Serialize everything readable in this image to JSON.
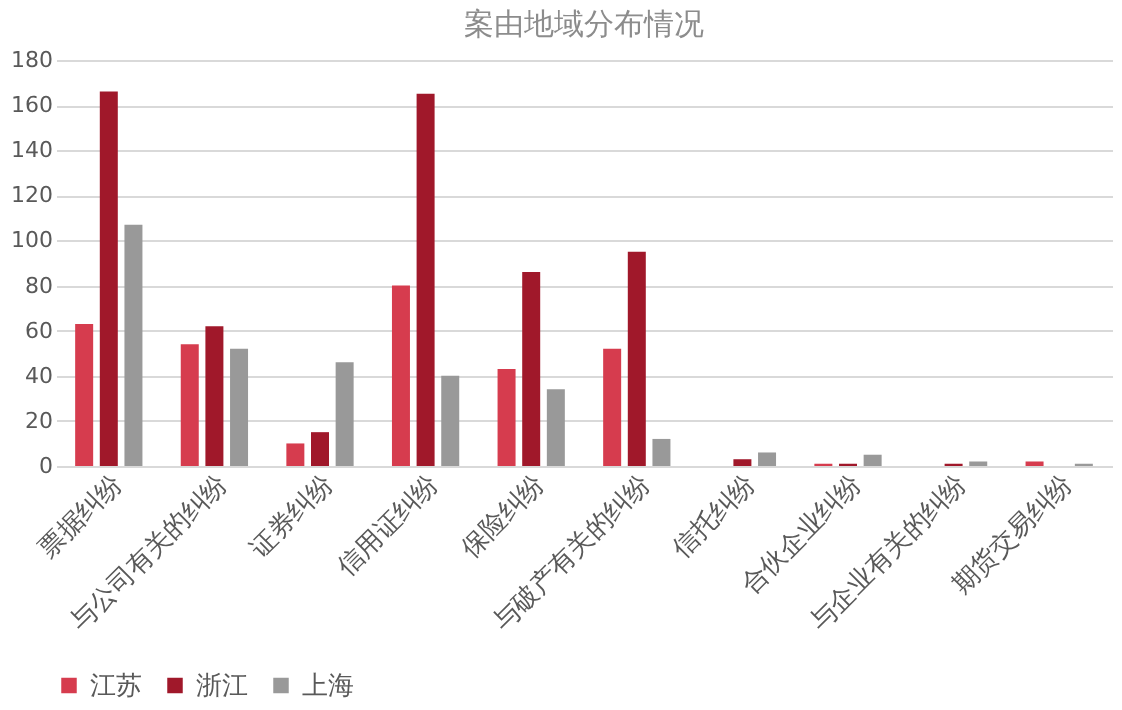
{
  "chart_data": {
    "type": "bar",
    "title": "案由地域分布情况",
    "categories": [
      "票据纠纷",
      "与公司有关的纠纷",
      "证券纠纷",
      "信用证纠纷",
      "保险纠纷",
      "与破产有关的纠纷",
      "信托纠纷",
      "合伙企业纠纷",
      "与企业有关的纠纷",
      "期货交易纠纷"
    ],
    "series": [
      {
        "name": "江苏",
        "color": "#d63c4e",
        "values": [
          63,
          54,
          10,
          80,
          43,
          52,
          0,
          1,
          0,
          2
        ]
      },
      {
        "name": "浙江",
        "color": "#a0182a",
        "values": [
          166,
          62,
          15,
          165,
          86,
          95,
          3,
          1,
          1,
          0
        ]
      },
      {
        "name": "上海",
        "color": "#999999",
        "values": [
          107,
          52,
          46,
          40,
          34,
          12,
          6,
          5,
          2,
          1
        ]
      }
    ],
    "ylim": [
      0,
      180
    ],
    "yticks": [
      0,
      20,
      40,
      60,
      80,
      100,
      120,
      140,
      160,
      180
    ],
    "grid": "y",
    "legend": "bottom"
  }
}
